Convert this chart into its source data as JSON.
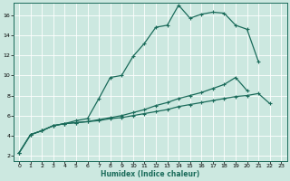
{
  "xlabel": "Humidex (Indice chaleur)",
  "background_color": "#cce8e0",
  "grid_background": "#cce8e0",
  "line_color": "#1a6b5a",
  "grid_color": "#b0d8cc",
  "xlim": [
    -0.5,
    23.5
  ],
  "ylim": [
    1.5,
    17.2
  ],
  "xticks": [
    0,
    1,
    2,
    3,
    4,
    5,
    6,
    7,
    8,
    9,
    10,
    11,
    12,
    13,
    14,
    15,
    16,
    17,
    18,
    19,
    20,
    21,
    22,
    23
  ],
  "yticks": [
    2,
    4,
    6,
    8,
    10,
    12,
    14,
    16
  ],
  "line1_y": [
    2.3,
    4.1,
    4.5,
    5.0,
    5.2,
    5.5,
    5.7,
    7.7,
    9.8,
    10.0,
    11.9,
    13.2,
    14.8,
    15.0,
    17.0,
    15.7,
    16.1,
    16.3,
    16.2,
    15.0,
    14.6,
    11.4,
    null,
    null
  ],
  "line2_y": [
    2.3,
    4.1,
    4.5,
    5.0,
    5.2,
    5.3,
    5.4,
    5.6,
    5.8,
    6.0,
    6.3,
    6.6,
    7.0,
    7.3,
    7.7,
    8.0,
    8.3,
    8.7,
    9.1,
    9.8,
    8.5,
    null,
    null,
    null
  ],
  "line3_y": [
    2.3,
    4.1,
    4.5,
    5.0,
    5.2,
    5.3,
    5.4,
    5.5,
    5.7,
    5.8,
    6.0,
    6.2,
    6.4,
    6.6,
    6.9,
    7.1,
    7.3,
    7.5,
    7.7,
    7.9,
    8.0,
    8.2,
    7.2,
    null
  ]
}
